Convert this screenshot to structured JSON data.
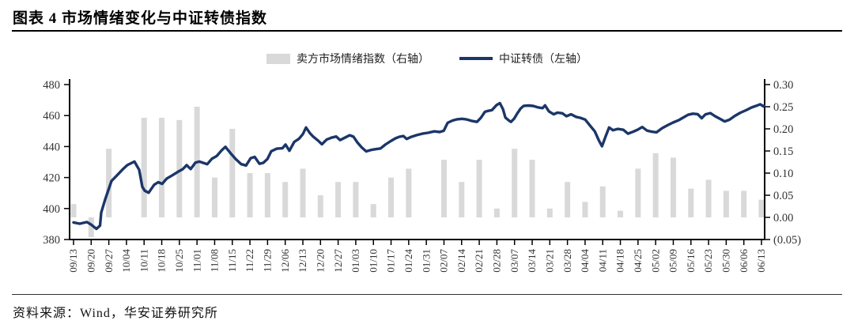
{
  "page": {
    "title": "图表 4 市场情绪变化与中证转债指数",
    "source": "资料来源：Wind，华安证券研究所"
  },
  "legend": {
    "items": [
      {
        "label": "卖方市场情绪指数（右轴）",
        "swatch": "bar",
        "color": "#d9d9d9"
      },
      {
        "label": "中证转债（左轴）",
        "swatch": "line",
        "color": "#1b3668"
      }
    ]
  },
  "chart_data": {
    "type": "bar+line",
    "title": "市场情绪变化与中证转债指数",
    "categories": [
      "09/13",
      "09/20",
      "09/27",
      "10/04",
      "10/11",
      "10/18",
      "10/25",
      "11/01",
      "11/08",
      "11/15",
      "11/22",
      "11/29",
      "12/06",
      "12/13",
      "12/20",
      "12/27",
      "01/03",
      "01/10",
      "01/17",
      "01/24",
      "01/31",
      "02/07",
      "02/14",
      "02/21",
      "02/28",
      "03/07",
      "03/14",
      "03/21",
      "03/28",
      "04/04",
      "04/11",
      "04/18",
      "04/25",
      "05/02",
      "05/09",
      "05/16",
      "05/23",
      "05/30",
      "06/06",
      "06/13"
    ],
    "left_axis": {
      "min": 380,
      "max": 480,
      "ticks": [
        {
          "v": 380,
          "label": "380"
        },
        {
          "v": 400,
          "label": "400"
        },
        {
          "v": 420,
          "label": "420"
        },
        {
          "v": 440,
          "label": "440"
        },
        {
          "v": 460,
          "label": "460"
        },
        {
          "v": 480,
          "label": "480"
        }
      ]
    },
    "right_axis": {
      "min": -0.05,
      "max": 0.3,
      "ticks": [
        {
          "v": -0.05,
          "label": "(0.05)",
          "color": "#ff0000"
        },
        {
          "v": 0.0,
          "label": "0.00"
        },
        {
          "v": 0.05,
          "label": "0.05"
        },
        {
          "v": 0.1,
          "label": "0.10"
        },
        {
          "v": 0.15,
          "label": "0.15"
        },
        {
          "v": 0.2,
          "label": "0.20"
        },
        {
          "v": 0.25,
          "label": "0.25"
        },
        {
          "v": 0.3,
          "label": "0.30"
        }
      ]
    },
    "series": [
      {
        "name": "卖方市场情绪指数（右轴）",
        "type": "bar",
        "axis": "right",
        "color": "#d9d9d9",
        "values": [
          0.03,
          -0.045,
          0.155,
          null,
          0.225,
          0.225,
          0.22,
          0.25,
          0.09,
          0.2,
          0.1,
          0.1,
          0.08,
          0.11,
          0.05,
          0.08,
          0.08,
          0.03,
          0.09,
          0.11,
          null,
          0.13,
          0.08,
          0.13,
          0.02,
          0.155,
          0.13,
          0.02,
          0.08,
          0.035,
          0.07,
          0.015,
          0.11,
          0.145,
          0.135,
          0.065,
          0.085,
          0.06,
          0.06,
          0.04
        ]
      },
      {
        "name": "中证转债（左轴）",
        "type": "line",
        "axis": "left",
        "color": "#1b3668",
        "points": [
          [
            0,
            391
          ],
          [
            0.35,
            390.2
          ],
          [
            0.76,
            391.3
          ],
          [
            1.0,
            389.6
          ],
          [
            1.3,
            386.9
          ],
          [
            1.5,
            389
          ],
          [
            1.57,
            397.4
          ],
          [
            1.79,
            405.7
          ],
          [
            2.15,
            417.8
          ],
          [
            2.47,
            421.5
          ],
          [
            2.78,
            425.2
          ],
          [
            3.05,
            428
          ],
          [
            3.45,
            430.3
          ],
          [
            3.72,
            425
          ],
          [
            3.9,
            414
          ],
          [
            4.04,
            411.5
          ],
          [
            4.26,
            410.2
          ],
          [
            4.57,
            415.3
          ],
          [
            4.8,
            417
          ],
          [
            5.02,
            415.9
          ],
          [
            5.29,
            419.4
          ],
          [
            5.61,
            421.5
          ],
          [
            5.92,
            423.7
          ],
          [
            6.19,
            425.4
          ],
          [
            6.41,
            428
          ],
          [
            6.64,
            425.5
          ],
          [
            6.91,
            429.6
          ],
          [
            7.13,
            430.3
          ],
          [
            7.4,
            429.3
          ],
          [
            7.58,
            428.6
          ],
          [
            7.85,
            432.2
          ],
          [
            8.12,
            433.9
          ],
          [
            8.39,
            437.5
          ],
          [
            8.61,
            439.8
          ],
          [
            8.88,
            436
          ],
          [
            9.19,
            432
          ],
          [
            9.51,
            428.6
          ],
          [
            9.78,
            427.8
          ],
          [
            10.04,
            432.5
          ],
          [
            10.27,
            433.3
          ],
          [
            10.54,
            428.9
          ],
          [
            10.76,
            429.5
          ],
          [
            10.99,
            432
          ],
          [
            11.21,
            437
          ],
          [
            11.52,
            438.6
          ],
          [
            11.84,
            438.9
          ],
          [
            12.02,
            441.3
          ],
          [
            12.24,
            437.3
          ],
          [
            12.51,
            443
          ],
          [
            12.78,
            445
          ],
          [
            13.0,
            448
          ],
          [
            13.18,
            452.3
          ],
          [
            13.41,
            448.5
          ],
          [
            13.59,
            446.4
          ],
          [
            13.86,
            443.9
          ],
          [
            14.08,
            441.5
          ],
          [
            14.35,
            444.5
          ],
          [
            14.62,
            445.7
          ],
          [
            14.89,
            446.5
          ],
          [
            15.11,
            444.2
          ],
          [
            15.38,
            445.7
          ],
          [
            15.65,
            447.3
          ],
          [
            15.87,
            446.4
          ],
          [
            16.1,
            442.5
          ],
          [
            16.33,
            439.5
          ],
          [
            16.59,
            436.9
          ],
          [
            16.86,
            437.8
          ],
          [
            17.13,
            438.3
          ],
          [
            17.4,
            438.8
          ],
          [
            17.67,
            441.2
          ],
          [
            17.98,
            443.5
          ],
          [
            18.25,
            445.3
          ],
          [
            18.47,
            446.3
          ],
          [
            18.7,
            446.8
          ],
          [
            18.88,
            444.9
          ],
          [
            19.15,
            446.3
          ],
          [
            19.46,
            447.4
          ],
          [
            19.78,
            448.3
          ],
          [
            20.09,
            448.9
          ],
          [
            20.45,
            449.8
          ],
          [
            20.76,
            449.4
          ],
          [
            20.99,
            450.2
          ],
          [
            21.21,
            455.3
          ],
          [
            21.48,
            456.8
          ],
          [
            21.75,
            457.6
          ],
          [
            22.02,
            457.9
          ],
          [
            22.29,
            457.5
          ],
          [
            22.6,
            456.5
          ],
          [
            22.87,
            455.9
          ],
          [
            23.09,
            458.5
          ],
          [
            23.32,
            462.4
          ],
          [
            23.5,
            463
          ],
          [
            23.72,
            463.5
          ],
          [
            23.99,
            466.9
          ],
          [
            24.17,
            468
          ],
          [
            24.35,
            464
          ],
          [
            24.48,
            458.7
          ],
          [
            24.66,
            457
          ],
          [
            24.8,
            455.9
          ],
          [
            24.98,
            458
          ],
          [
            25.16,
            461.5
          ],
          [
            25.34,
            464.5
          ],
          [
            25.52,
            466.3
          ],
          [
            25.78,
            466.5
          ],
          [
            26.05,
            466.2
          ],
          [
            26.32,
            465.3
          ],
          [
            26.59,
            464.8
          ],
          [
            26.73,
            466.6
          ],
          [
            26.95,
            462.7
          ],
          [
            27.22,
            460.8
          ],
          [
            27.44,
            461.9
          ],
          [
            27.71,
            461.5
          ],
          [
            27.94,
            459.6
          ],
          [
            28.21,
            460.8
          ],
          [
            28.48,
            459.2
          ],
          [
            28.74,
            458.5
          ],
          [
            29.01,
            457.4
          ],
          [
            29.28,
            453.5
          ],
          [
            29.55,
            449.8
          ],
          [
            29.78,
            444
          ],
          [
            29.96,
            440.2
          ],
          [
            30.18,
            447
          ],
          [
            30.36,
            452.3
          ],
          [
            30.58,
            450.5
          ],
          [
            30.85,
            451.4
          ],
          [
            31.17,
            450.8
          ],
          [
            31.43,
            448.3
          ],
          [
            31.7,
            449.5
          ],
          [
            31.97,
            450.8
          ],
          [
            32.24,
            452.6
          ],
          [
            32.51,
            450.3
          ],
          [
            32.78,
            449.6
          ],
          [
            33.05,
            449.2
          ],
          [
            33.36,
            451.8
          ],
          [
            33.68,
            453.8
          ],
          [
            33.99,
            455.5
          ],
          [
            34.3,
            457
          ],
          [
            34.57,
            458.8
          ],
          [
            34.84,
            460.5
          ],
          [
            35.11,
            461.2
          ],
          [
            35.38,
            460.9
          ],
          [
            35.61,
            458.3
          ],
          [
            35.83,
            460.8
          ],
          [
            36.1,
            461.6
          ],
          [
            36.37,
            459.6
          ],
          [
            36.64,
            457.9
          ],
          [
            36.91,
            456.2
          ],
          [
            37.18,
            457.3
          ],
          [
            37.49,
            459.8
          ],
          [
            37.81,
            461.9
          ],
          [
            38.12,
            463.4
          ],
          [
            38.43,
            465.2
          ],
          [
            38.7,
            466.3
          ],
          [
            38.93,
            467.3
          ],
          [
            39.11,
            465.9
          ],
          [
            39.15,
            466.4
          ]
        ]
      }
    ],
    "layout": {
      "grid": false,
      "legend_position": "top-center",
      "x_label_rotation": -90
    }
  }
}
